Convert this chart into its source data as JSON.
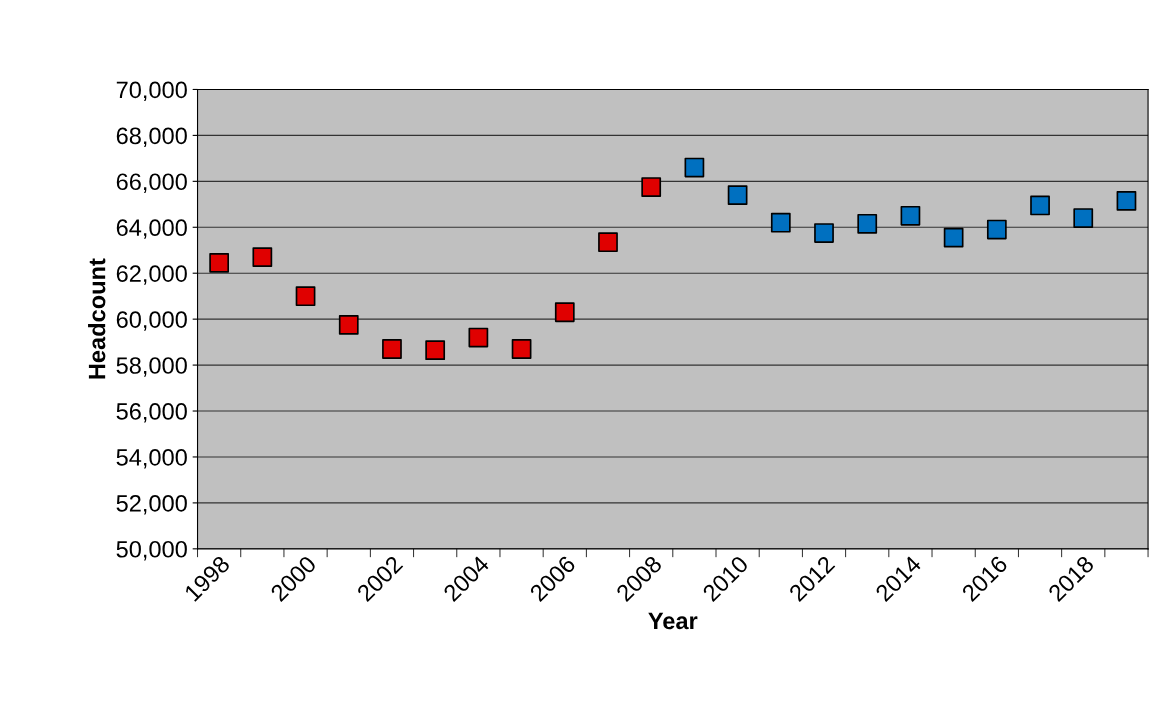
{
  "chart_data": {
    "type": "scatter",
    "xlabel": "Year",
    "ylabel": "Headcount",
    "categories": [
      "1998",
      null,
      "2000",
      null,
      "2002",
      null,
      "2004",
      null,
      "2006",
      null,
      "2008",
      null,
      "2010",
      null,
      "2012",
      null,
      "2014",
      null,
      "2016",
      null,
      "2018",
      null
    ],
    "series": [
      {
        "color": "#e00000",
        "values": [
          62450,
          62700,
          61000,
          59750,
          58700,
          58650,
          59200,
          58700,
          60300,
          63350,
          65750,
          null,
          null,
          null,
          null,
          null,
          null,
          null,
          null,
          null,
          null,
          null
        ]
      },
      {
        "color": "#0070c0",
        "values": [
          null,
          null,
          null,
          null,
          null,
          null,
          null,
          null,
          null,
          null,
          null,
          66600,
          65400,
          64200,
          63750,
          64150,
          64500,
          63550,
          63900,
          64950,
          64400,
          65150
        ]
      }
    ],
    "ylim": [
      50000,
      70000
    ],
    "yticks": [
      {
        "value": 50000,
        "label": "50,000"
      },
      {
        "value": 52000,
        "label": "52,000"
      },
      {
        "value": 54000,
        "label": "54,000"
      },
      {
        "value": 56000,
        "label": "56,000"
      },
      {
        "value": 58000,
        "label": "58,000"
      },
      {
        "value": 60000,
        "label": "60,000"
      },
      {
        "value": 62000,
        "label": "62,000"
      },
      {
        "value": 64000,
        "label": "64,000"
      },
      {
        "value": 66000,
        "label": "66,000"
      },
      {
        "value": 68000,
        "label": "68,000"
      },
      {
        "value": 70000,
        "label": "70,000"
      }
    ],
    "grid": "y",
    "marker": "square"
  }
}
